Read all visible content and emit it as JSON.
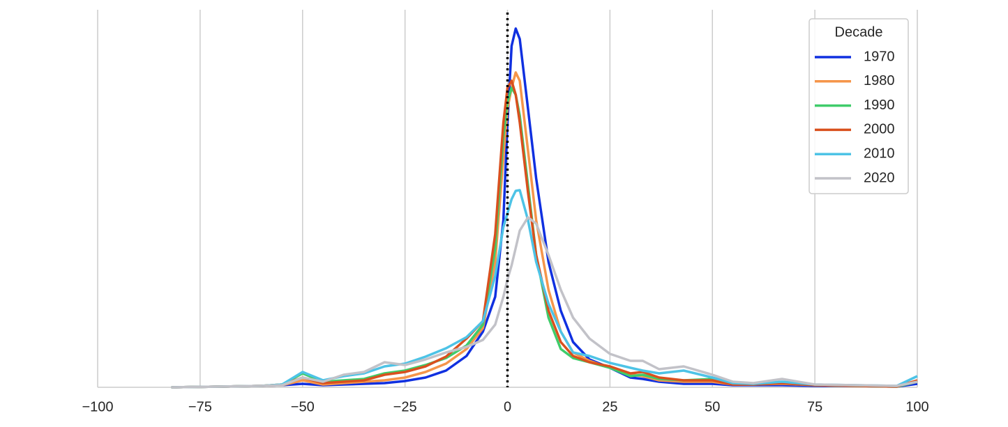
{
  "chart_data": {
    "type": "line",
    "legend_title": "Decade",
    "legend_position": "upper right",
    "grid": "x",
    "reference_line": {
      "x": 0,
      "color": "#000000",
      "style": "dotted"
    },
    "x": [
      -82,
      -70,
      -60,
      -55,
      -50,
      -45,
      -40,
      -35,
      -30,
      -25,
      -20,
      -15,
      -10,
      -6,
      -3,
      -1,
      0,
      1,
      2,
      3,
      5,
      7,
      10,
      13,
      16,
      20,
      25,
      30,
      33,
      37,
      43,
      50,
      55,
      60,
      67,
      75,
      85,
      95,
      100
    ],
    "xlim": [
      -100,
      100
    ],
    "xticks": [
      {
        "value": -100,
        "label": "−100"
      },
      {
        "value": -75,
        "label": "−75"
      },
      {
        "value": -50,
        "label": "−50"
      },
      {
        "value": -25,
        "label": "−25"
      },
      0,
      25,
      50,
      75,
      100
    ],
    "ylim": [
      0,
      0.0542
    ],
    "series": [
      {
        "name": "1970",
        "color": "#1030e0",
        "values": [
          0,
          0.0001,
          0.0002,
          0.0003,
          0.0005,
          0.0003,
          0.0004,
          0.0005,
          0.0006,
          0.0009,
          0.0014,
          0.0024,
          0.0045,
          0.008,
          0.013,
          0.024,
          0.038,
          0.049,
          0.0515,
          0.05,
          0.04,
          0.03,
          0.018,
          0.011,
          0.0065,
          0.004,
          0.0028,
          0.0014,
          0.0012,
          0.0008,
          0.0005,
          0.0005,
          0.0003,
          0.0003,
          0.0003,
          0.0002,
          0.0002,
          0.0001,
          0.0005
        ]
      },
      {
        "name": "1980",
        "color": "#f5954a",
        "values": [
          0,
          0.0001,
          0.0002,
          0.0003,
          0.001,
          0.0004,
          0.0006,
          0.0008,
          0.001,
          0.0014,
          0.0022,
          0.0034,
          0.0055,
          0.0085,
          0.018,
          0.033,
          0.04,
          0.043,
          0.0452,
          0.044,
          0.034,
          0.024,
          0.014,
          0.008,
          0.005,
          0.0038,
          0.0028,
          0.0018,
          0.0016,
          0.001,
          0.0008,
          0.0008,
          0.0004,
          0.0004,
          0.0005,
          0.0003,
          0.0002,
          0.0001,
          0.0008
        ]
      },
      {
        "name": "1990",
        "color": "#3fcc6a",
        "values": [
          0,
          0.0001,
          0.0002,
          0.0004,
          0.002,
          0.0008,
          0.001,
          0.0012,
          0.002,
          0.0024,
          0.0032,
          0.0042,
          0.006,
          0.009,
          0.02,
          0.036,
          0.041,
          0.043,
          0.042,
          0.039,
          0.029,
          0.019,
          0.01,
          0.0055,
          0.0042,
          0.0036,
          0.0028,
          0.0016,
          0.0018,
          0.0012,
          0.001,
          0.0012,
          0.0005,
          0.0004,
          0.0006,
          0.0003,
          0.0002,
          0.0001,
          0.0008
        ]
      },
      {
        "name": "2000",
        "color": "#d9501e",
        "values": [
          0,
          0.0001,
          0.0002,
          0.0004,
          0.0014,
          0.0006,
          0.0008,
          0.001,
          0.0018,
          0.0022,
          0.003,
          0.0044,
          0.007,
          0.0095,
          0.022,
          0.038,
          0.043,
          0.044,
          0.042,
          0.038,
          0.028,
          0.019,
          0.011,
          0.0065,
          0.0045,
          0.0036,
          0.003,
          0.002,
          0.0022,
          0.0014,
          0.001,
          0.001,
          0.0004,
          0.0004,
          0.0006,
          0.0003,
          0.0002,
          0.0001,
          0.001
        ]
      },
      {
        "name": "2010",
        "color": "#4dc3e6",
        "values": [
          0,
          0.0001,
          0.0002,
          0.0004,
          0.0022,
          0.001,
          0.0016,
          0.002,
          0.003,
          0.0034,
          0.0044,
          0.0056,
          0.0072,
          0.0095,
          0.016,
          0.023,
          0.025,
          0.027,
          0.0282,
          0.0283,
          0.024,
          0.018,
          0.012,
          0.008,
          0.005,
          0.0045,
          0.0035,
          0.0028,
          0.0024,
          0.002,
          0.0024,
          0.0014,
          0.0006,
          0.0005,
          0.0008,
          0.0004,
          0.0003,
          0.0002,
          0.0016
        ]
      },
      {
        "name": "2020",
        "color": "#c2c2c8",
        "values": [
          0,
          0.0001,
          0.0002,
          0.0003,
          0.0014,
          0.0008,
          0.0018,
          0.0022,
          0.0036,
          0.0032,
          0.004,
          0.005,
          0.0058,
          0.0068,
          0.009,
          0.013,
          0.0155,
          0.0175,
          0.02,
          0.0225,
          0.0244,
          0.0235,
          0.019,
          0.014,
          0.01,
          0.007,
          0.0048,
          0.0038,
          0.0038,
          0.0026,
          0.003,
          0.0018,
          0.0008,
          0.0006,
          0.0012,
          0.0004,
          0.0003,
          0.0002,
          0.0008
        ]
      }
    ]
  }
}
